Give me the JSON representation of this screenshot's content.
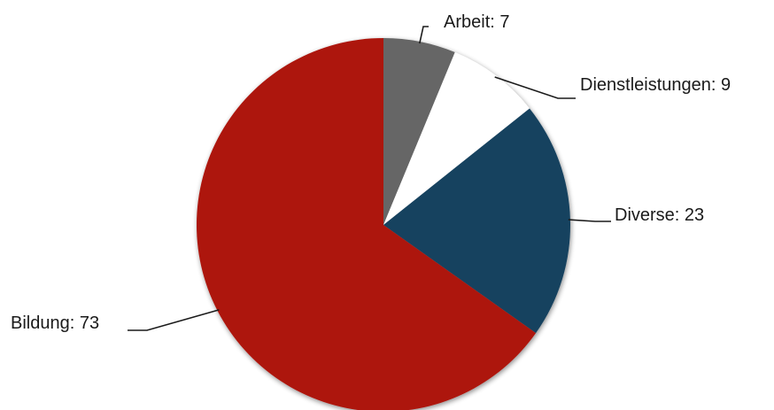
{
  "chart_data": {
    "type": "pie",
    "start_angle_deg": 0,
    "direction": "clockwise",
    "slices": [
      {
        "label": "Arbeit",
        "value": 7,
        "display": "Arbeit: 7",
        "color": "#666666"
      },
      {
        "label": "Dienstleistungen",
        "value": 9,
        "display": "Dienstleistungen: 9",
        "color": "#ffffff"
      },
      {
        "label": "Diverse",
        "value": 23,
        "display": "Diverse: 23",
        "color": "#17425f"
      },
      {
        "label": "Bildung",
        "value": 73,
        "display": "Bildung: 73",
        "color": "#ad140d"
      }
    ],
    "shadow": true
  }
}
